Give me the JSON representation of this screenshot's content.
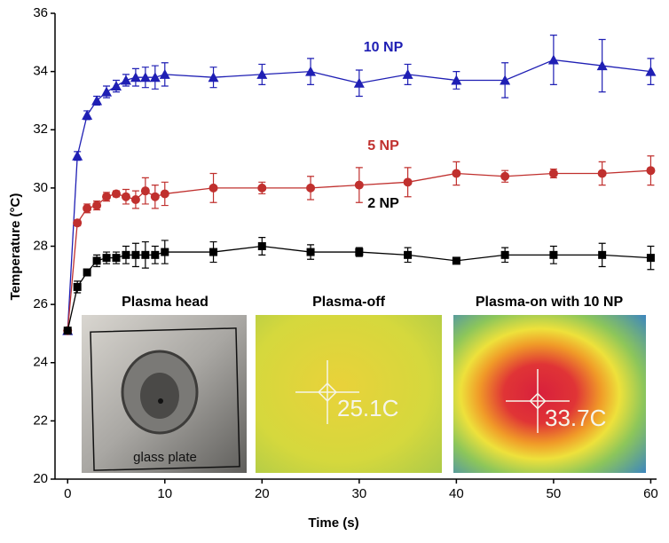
{
  "chart_data": {
    "type": "line",
    "x_label": "Time (s)",
    "y_label": "Temperature (°C)",
    "x": [
      0,
      1,
      2,
      3,
      4,
      5,
      6,
      7,
      8,
      9,
      10,
      15,
      20,
      25,
      30,
      35,
      40,
      45,
      50,
      55,
      60
    ],
    "series": [
      {
        "name": "10 NP",
        "color": "#1f1fb4",
        "marker": "triangle",
        "values": [
          25.1,
          31.1,
          32.5,
          33.0,
          33.3,
          33.5,
          33.7,
          33.8,
          33.8,
          33.8,
          33.9,
          33.8,
          33.9,
          34.0,
          33.6,
          33.9,
          33.7,
          33.7,
          34.4,
          34.2,
          34.0
        ],
        "errors": [
          0.1,
          0.15,
          0.15,
          0.15,
          0.2,
          0.2,
          0.2,
          0.3,
          0.35,
          0.4,
          0.4,
          0.35,
          0.35,
          0.45,
          0.45,
          0.35,
          0.3,
          0.6,
          0.85,
          0.9,
          0.45
        ]
      },
      {
        "name": "5 NP",
        "color": "#c0302e",
        "marker": "circle",
        "values": [
          25.1,
          28.8,
          29.3,
          29.4,
          29.7,
          29.8,
          29.7,
          29.6,
          29.9,
          29.7,
          29.8,
          30.0,
          30.0,
          30.0,
          30.1,
          30.2,
          30.5,
          30.4,
          30.5,
          30.5,
          30.6
        ],
        "errors": [
          0.1,
          0.1,
          0.15,
          0.15,
          0.15,
          0.1,
          0.25,
          0.3,
          0.45,
          0.4,
          0.4,
          0.5,
          0.2,
          0.4,
          0.6,
          0.5,
          0.4,
          0.2,
          0.15,
          0.4,
          0.5
        ]
      },
      {
        "name": "2 NP",
        "color": "#000000",
        "marker": "square",
        "values": [
          25.1,
          26.6,
          27.1,
          27.5,
          27.6,
          27.6,
          27.7,
          27.7,
          27.7,
          27.7,
          27.8,
          27.8,
          28.0,
          27.8,
          27.8,
          27.7,
          27.5,
          27.7,
          27.7,
          27.7,
          27.6
        ],
        "errors": [
          0.1,
          0.2,
          0.1,
          0.2,
          0.2,
          0.2,
          0.3,
          0.4,
          0.45,
          0.3,
          0.4,
          0.35,
          0.3,
          0.25,
          0.15,
          0.25,
          0.1,
          0.25,
          0.3,
          0.4,
          0.4
        ]
      }
    ],
    "xlim": [
      -1.3,
      60.6
    ],
    "ylim": [
      20,
      36
    ],
    "xticks": [
      0,
      10,
      20,
      30,
      40,
      50,
      60
    ],
    "yticks": [
      20,
      22,
      24,
      26,
      28,
      30,
      32,
      34,
      36
    ]
  },
  "insets": [
    {
      "title": "Plasma head",
      "caption": "glass plate"
    },
    {
      "title": "Plasma-off",
      "reading": "25.1C"
    },
    {
      "title": "Plasma-on with 10 NP",
      "reading": "33.7C"
    }
  ]
}
